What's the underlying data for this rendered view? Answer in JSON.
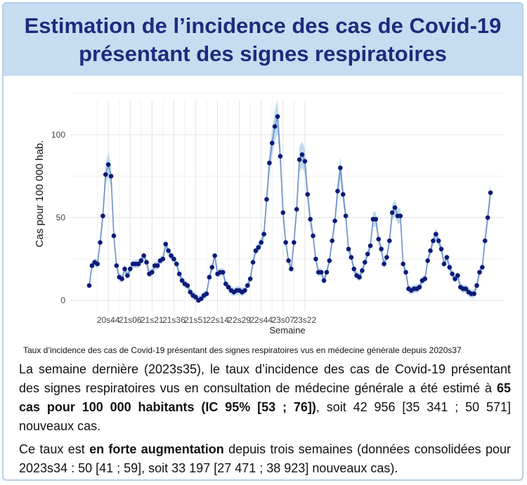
{
  "header": {
    "title_line1": "Estimation de l’incidence des cas de Covid-19",
    "title_line2": "présentant des signes respiratoires"
  },
  "colors": {
    "header_bg": "#c6dcf1",
    "title": "#1f2a7d",
    "points": "#0c1a7a",
    "line": "#6f90c9",
    "band": "#a9cfe6"
  },
  "chart_data": {
    "type": "line",
    "title": "",
    "xlabel": "Semaine",
    "ylabel": "Cas pour 100 000 hab.",
    "ylim": [
      0,
      125
    ],
    "yticks": [
      0,
      50,
      100
    ],
    "grid": true,
    "legend": "none",
    "start_week": "2020s37",
    "xticks": [
      {
        "label": "20s44",
        "index": 7
      },
      {
        "label": "21s06",
        "index": 15
      },
      {
        "label": "21s21",
        "index": 23
      },
      {
        "label": "21s36",
        "index": 31
      },
      {
        "label": "21s51",
        "index": 39
      },
      {
        "label": "22s14",
        "index": 47
      },
      {
        "label": "22s29",
        "index": 55
      },
      {
        "label": "22s44",
        "index": 63
      },
      {
        "label": "23s07",
        "index": 71
      },
      {
        "label": "23s22",
        "index": 79
      }
    ],
    "values": [
      9,
      21,
      23,
      22,
      35,
      51,
      76,
      82,
      75,
      39,
      21,
      14,
      13,
      19,
      15,
      19,
      22,
      22,
      22,
      24,
      27,
      23,
      16,
      17,
      21,
      21,
      24,
      25,
      34,
      30,
      27,
      25,
      22,
      16,
      12,
      10,
      9,
      5,
      3,
      2,
      0,
      1,
      3,
      4,
      14,
      20,
      27,
      16,
      17,
      17,
      10,
      8,
      6,
      5,
      6,
      6,
      5,
      6,
      9,
      13,
      23,
      30,
      32,
      35,
      40,
      61,
      83,
      95,
      105,
      111,
      87,
      53,
      35,
      24,
      19,
      35,
      55,
      85,
      88,
      84,
      64,
      49,
      39,
      25,
      17,
      17,
      12,
      17,
      24,
      36,
      48,
      66,
      80,
      64,
      51,
      31,
      26,
      19,
      15,
      14,
      18,
      23,
      28,
      33,
      49,
      49,
      37,
      31,
      22,
      26,
      36,
      53,
      56,
      51,
      51,
      22,
      17,
      7,
      6,
      7,
      7,
      8,
      12,
      13,
      24,
      30,
      36,
      40,
      36,
      31,
      22,
      26,
      20,
      16,
      13,
      15,
      8,
      7,
      7,
      5,
      4,
      4,
      9,
      17,
      20,
      36,
      50,
      65
    ]
  },
  "caption": "Taux d’incidence des cas de Covid-19 présentant des signes respiratoires vus en médecine générale depuis 2020s37",
  "body": {
    "para1_part1": "La semaine dernière (2023s35), le taux d’incidence des cas de Covid-19 présentant des signes respiratoires vus en consultation de médecine générale a été estimé à ",
    "para1_bold": "65 cas pour 100 000 habitants (IC 95% [53 ; 76])",
    "para1_part2": ", soit 42 956 [35 341 ; 50 571] nouveaux cas.",
    "para2_part1": "Ce taux est ",
    "para2_bold": "en forte augmentation",
    "para2_part2": " depuis trois semaines (données consolidées pour 2023s34 : 50 [41 ; 59], soit 33 197 [27 471 ; 38 923] nouveaux cas)."
  }
}
